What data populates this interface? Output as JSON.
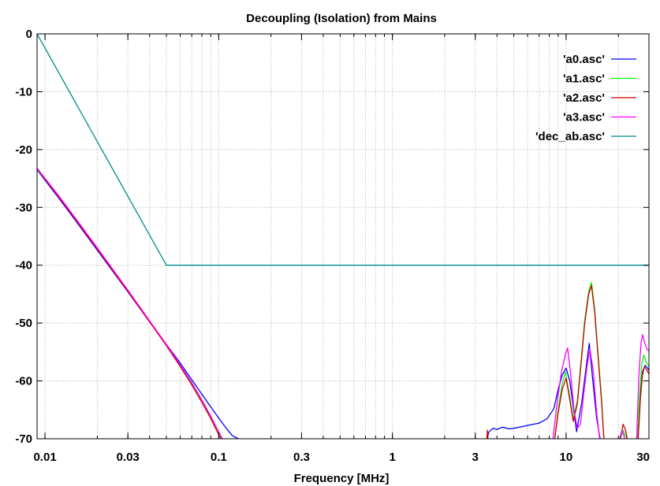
{
  "chart_data": {
    "type": "line",
    "title": "Decoupling (Isolation) from Mains",
    "xlabel": "Frequency [MHz]",
    "ylabel": "",
    "xscale": "log",
    "xlim": [
      0.009,
      30
    ],
    "ylim": [
      -70,
      0
    ],
    "x_ticks": [
      {
        "value": 0.01,
        "label": "0.01"
      },
      {
        "value": 0.03,
        "label": "0.03"
      },
      {
        "value": 0.1,
        "label": "0.1"
      },
      {
        "value": 0.3,
        "label": "0.3"
      },
      {
        "value": 1,
        "label": "1"
      },
      {
        "value": 3,
        "label": "3"
      },
      {
        "value": 10,
        "label": "10"
      },
      {
        "value": 30,
        "label": "30"
      }
    ],
    "y_ticks": [
      {
        "value": 0,
        "label": "0"
      },
      {
        "value": -10,
        "label": "-10"
      },
      {
        "value": -20,
        "label": "-20"
      },
      {
        "value": -30,
        "label": "-30"
      },
      {
        "value": -40,
        "label": "-40"
      },
      {
        "value": -50,
        "label": "-50"
      },
      {
        "value": -60,
        "label": "-60"
      },
      {
        "value": -70,
        "label": "-70"
      }
    ],
    "grid": true,
    "legend_position": "top-right",
    "series": [
      {
        "name": "'a0.asc'",
        "color": "#0000ff",
        "segments": [
          [
            [
              0.009,
              -23.5
            ],
            [
              0.012,
              -28.4
            ],
            [
              0.015,
              -32.3
            ],
            [
              0.02,
              -37.4
            ],
            [
              0.03,
              -44.6
            ],
            [
              0.04,
              -49.8
            ],
            [
              0.05,
              -53.7
            ],
            [
              0.06,
              -56.9
            ],
            [
              0.07,
              -59.8
            ],
            [
              0.08,
              -62.3
            ],
            [
              0.09,
              -64.5
            ],
            [
              0.1,
              -66.4
            ],
            [
              0.11,
              -68.1
            ],
            [
              0.12,
              -69.5
            ],
            [
              0.13,
              -70
            ]
          ],
          [
            [
              3.5,
              -70
            ],
            [
              3.6,
              -68.8
            ],
            [
              3.8,
              -68.2
            ],
            [
              4.0,
              -68.4
            ],
            [
              4.3,
              -68.0
            ],
            [
              4.7,
              -68.3
            ],
            [
              5.2,
              -68.1
            ],
            [
              6.0,
              -67.7
            ],
            [
              7.0,
              -67.3
            ],
            [
              7.8,
              -66.5
            ],
            [
              8.5,
              -64.8
            ],
            [
              9.0,
              -61.5
            ],
            [
              9.5,
              -59.0
            ],
            [
              10,
              -57.8
            ],
            [
              10.5,
              -60.0
            ],
            [
              11.0,
              -64.5
            ],
            [
              11.5,
              -68.8
            ],
            [
              12.3,
              -63.8
            ],
            [
              13.0,
              -58.0
            ],
            [
              13.6,
              -53.5
            ],
            [
              14.2,
              -59.5
            ],
            [
              15.0,
              -66.5
            ],
            [
              15.7,
              -70
            ]
          ],
          [
            [
              25.8,
              -70
            ],
            [
              26.5,
              -63.5
            ],
            [
              27.5,
              -58.5
            ],
            [
              28.5,
              -57.3
            ],
            [
              29.5,
              -57.8
            ],
            [
              30,
              -58.2
            ]
          ]
        ]
      },
      {
        "name": "'a1.asc'",
        "color": "#00ff00",
        "segments": [
          [
            [
              0.009,
              -23.4
            ],
            [
              0.012,
              -28.1
            ],
            [
              0.015,
              -32.0
            ],
            [
              0.02,
              -37.1
            ],
            [
              0.03,
              -44.4
            ],
            [
              0.04,
              -49.7
            ],
            [
              0.05,
              -53.8
            ],
            [
              0.06,
              -57.3
            ],
            [
              0.07,
              -60.4
            ],
            [
              0.08,
              -63.4
            ],
            [
              0.09,
              -66.2
            ],
            [
              0.1,
              -68.9
            ],
            [
              0.105,
              -70
            ]
          ],
          [
            [
              8.6,
              -70
            ],
            [
              9.0,
              -65.0
            ],
            [
              9.5,
              -60.5
            ],
            [
              9.9,
              -58.5
            ],
            [
              10.4,
              -62.0
            ],
            [
              11.0,
              -66.5
            ],
            [
              11.6,
              -63.5
            ],
            [
              12.2,
              -56.5
            ],
            [
              12.8,
              -49.5
            ],
            [
              13.5,
              -44.5
            ],
            [
              14.0,
              -43.0
            ],
            [
              14.6,
              -47.5
            ],
            [
              15.3,
              -55.5
            ],
            [
              16.0,
              -63.0
            ],
            [
              16.5,
              -70
            ]
          ],
          [
            [
              20.5,
              -70
            ],
            [
              21.3,
              -68.5
            ],
            [
              22.0,
              -69.5
            ],
            [
              22.5,
              -70
            ]
          ],
          [
            [
              25.8,
              -70
            ],
            [
              26.5,
              -62.5
            ],
            [
              27.3,
              -57.0
            ],
            [
              28.0,
              -55.5
            ],
            [
              29.0,
              -56.8
            ],
            [
              30,
              -57.5
            ]
          ]
        ]
      },
      {
        "name": "'a2.asc'",
        "color": "#cc0000",
        "segments": [
          [
            [
              0.009,
              -23.3
            ],
            [
              0.012,
              -28.2
            ],
            [
              0.015,
              -32.1
            ],
            [
              0.02,
              -37.2
            ],
            [
              0.03,
              -44.5
            ],
            [
              0.04,
              -49.8
            ],
            [
              0.05,
              -53.9
            ],
            [
              0.06,
              -57.5
            ],
            [
              0.07,
              -60.7
            ],
            [
              0.08,
              -63.7
            ],
            [
              0.09,
              -66.5
            ],
            [
              0.1,
              -69.3
            ],
            [
              0.103,
              -70
            ]
          ],
          [
            [
              3.5,
              -70
            ],
            [
              3.52,
              -68.5
            ],
            [
              3.55,
              -70
            ]
          ],
          [
            [
              8.6,
              -70
            ],
            [
              9.0,
              -65.5
            ],
            [
              9.5,
              -61.5
            ],
            [
              10.0,
              -59.5
            ],
            [
              10.4,
              -62.5
            ],
            [
              11.0,
              -67.0
            ],
            [
              11.6,
              -64.0
            ],
            [
              12.2,
              -57.0
            ],
            [
              12.8,
              -50.0
            ],
            [
              13.5,
              -45.0
            ],
            [
              14.0,
              -43.5
            ],
            [
              14.6,
              -48.0
            ],
            [
              15.3,
              -56.0
            ],
            [
              16.0,
              -63.5
            ],
            [
              16.5,
              -70
            ]
          ],
          [
            [
              20.5,
              -70
            ],
            [
              21.3,
              -67.5
            ],
            [
              22.0,
              -68.5
            ],
            [
              22.5,
              -70
            ]
          ],
          [
            [
              26.0,
              -70
            ],
            [
              26.8,
              -63.0
            ],
            [
              27.5,
              -59.0
            ],
            [
              28.3,
              -57.5
            ],
            [
              29.2,
              -58.2
            ],
            [
              30,
              -58.8
            ]
          ]
        ]
      },
      {
        "name": "'a3.asc'",
        "color": "#ff00ff",
        "segments": [
          [
            [
              0.009,
              -23.2
            ],
            [
              0.012,
              -28.0
            ],
            [
              0.015,
              -31.9
            ],
            [
              0.02,
              -37.0
            ],
            [
              0.03,
              -44.3
            ],
            [
              0.04,
              -49.6
            ],
            [
              0.05,
              -53.7
            ],
            [
              0.06,
              -57.2
            ],
            [
              0.07,
              -60.3
            ],
            [
              0.08,
              -63.3
            ],
            [
              0.09,
              -66.1
            ],
            [
              0.1,
              -68.8
            ],
            [
              0.105,
              -70
            ]
          ],
          [
            [
              8.4,
              -70
            ],
            [
              8.9,
              -63.5
            ],
            [
              9.4,
              -58.5
            ],
            [
              9.9,
              -55.5
            ],
            [
              10.2,
              -54.3
            ],
            [
              10.6,
              -58.5
            ],
            [
              11.1,
              -65.0
            ],
            [
              11.6,
              -68.2
            ],
            [
              12.1,
              -67.5
            ],
            [
              12.6,
              -62.5
            ],
            [
              13.2,
              -57.5
            ],
            [
              13.7,
              -54.5
            ],
            [
              14.3,
              -58.0
            ],
            [
              15.0,
              -65.5
            ],
            [
              15.6,
              -70
            ]
          ],
          [
            [
              20.3,
              -70
            ],
            [
              21.0,
              -68.5
            ],
            [
              21.8,
              -70
            ]
          ],
          [
            [
              25.5,
              -70
            ],
            [
              26.2,
              -59.5
            ],
            [
              27.0,
              -53.5
            ],
            [
              27.6,
              -52.0
            ],
            [
              28.4,
              -53.5
            ],
            [
              29.2,
              -54.5
            ],
            [
              30,
              -54.8
            ]
          ]
        ]
      },
      {
        "name": "'dec_ab.asc'",
        "color": "#008b8b",
        "segments": [
          [
            [
              0.009,
              0
            ],
            [
              0.05,
              -40
            ],
            [
              30,
              -40
            ]
          ]
        ]
      }
    ]
  }
}
